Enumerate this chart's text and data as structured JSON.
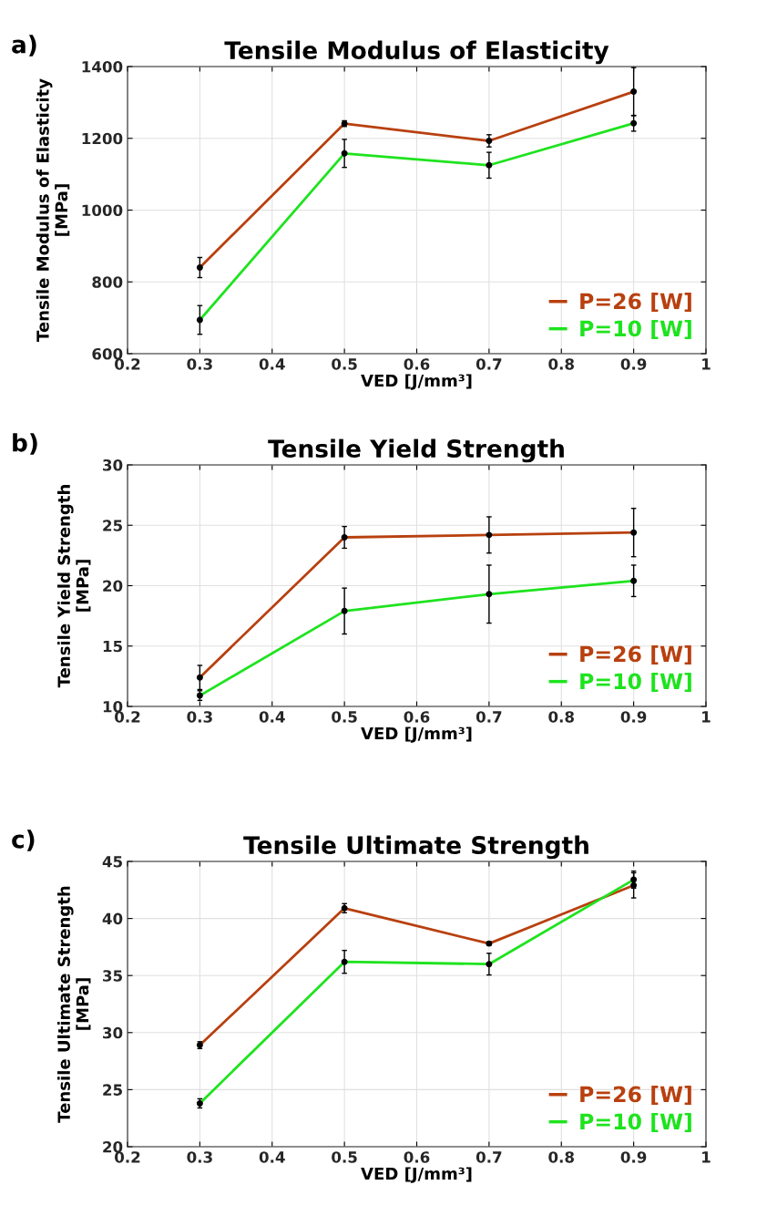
{
  "chart_data": [
    {
      "type": "line",
      "title": "Tensile Modulus of Elasticity",
      "xlabel": "VED [J/mm³]",
      "ylabel": "Tensile Modulus of Elasticity\n[MPa]",
      "annotations": [
        "a)"
      ],
      "x": [
        0.3,
        0.5,
        0.7,
        0.9
      ],
      "xlim": [
        0.2,
        1
      ],
      "xticks": [
        0.2,
        0.3,
        0.4,
        0.5,
        0.6,
        0.7,
        0.8,
        0.9,
        1
      ],
      "ylim": [
        600,
        1400
      ],
      "yticks": [
        600,
        800,
        1000,
        1200,
        1400
      ],
      "grid": true,
      "legend": "bottom right",
      "marker": "circle",
      "line_style": "solid",
      "series": [
        {
          "name": "P=26 [W]",
          "color": "#b8400f",
          "values": [
            840,
            1241,
            1193,
            1330
          ],
          "errors": [
            28,
            8,
            17,
            67
          ]
        },
        {
          "name": "P=10 [W]",
          "color": "#1ee31e",
          "values": [
            694,
            1158,
            1125,
            1242
          ],
          "errors": [
            40,
            39,
            36,
            22
          ]
        }
      ]
    },
    {
      "type": "line",
      "title": "Tensile Yield Strength",
      "xlabel": "VED [J/mm³]",
      "ylabel": "Tensile Yield Strength\n[MPa]",
      "annotations": [
        "b)"
      ],
      "x": [
        0.3,
        0.5,
        0.7,
        0.9
      ],
      "xlim": [
        0.2,
        1
      ],
      "xticks": [
        0.2,
        0.3,
        0.4,
        0.5,
        0.6,
        0.7,
        0.8,
        0.9,
        1
      ],
      "ylim": [
        10,
        30
      ],
      "yticks": [
        10,
        15,
        20,
        25,
        30
      ],
      "grid": true,
      "legend": "bottom right",
      "marker": "circle",
      "line_style": "solid",
      "series": [
        {
          "name": "P=26 [W]",
          "color": "#b8400f",
          "values": [
            12.4,
            24.0,
            24.2,
            24.4
          ],
          "errors": [
            1.0,
            0.9,
            1.5,
            2.0
          ]
        },
        {
          "name": "P=10 [W]",
          "color": "#1ee31e",
          "values": [
            10.9,
            17.9,
            19.3,
            20.4
          ],
          "errors": [
            0.4,
            1.9,
            2.4,
            1.3
          ]
        }
      ]
    },
    {
      "type": "line",
      "title": "Tensile Ultimate Strength",
      "xlabel": "VED [J/mm³]",
      "ylabel": "Tensile Ultimate Strength\n[MPa]",
      "annotations": [
        "c)"
      ],
      "x": [
        0.3,
        0.5,
        0.7,
        0.9
      ],
      "xlim": [
        0.2,
        1
      ],
      "xticks": [
        0.2,
        0.3,
        0.4,
        0.5,
        0.6,
        0.7,
        0.8,
        0.9,
        1
      ],
      "ylim": [
        20,
        45
      ],
      "yticks": [
        20,
        25,
        30,
        35,
        40,
        45
      ],
      "grid": true,
      "legend": "bottom right",
      "marker": "circle",
      "line_style": "solid",
      "series": [
        {
          "name": "P=26 [W]",
          "color": "#b8400f",
          "values": [
            28.9,
            40.9,
            37.8,
            42.9
          ],
          "errors": [
            0.3,
            0.4,
            0.15,
            1.1
          ]
        },
        {
          "name": "P=10 [W]",
          "color": "#1ee31e",
          "values": [
            23.8,
            36.2,
            36.0,
            43.4
          ],
          "errors": [
            0.4,
            1.0,
            0.95,
            0.75
          ]
        }
      ]
    }
  ]
}
